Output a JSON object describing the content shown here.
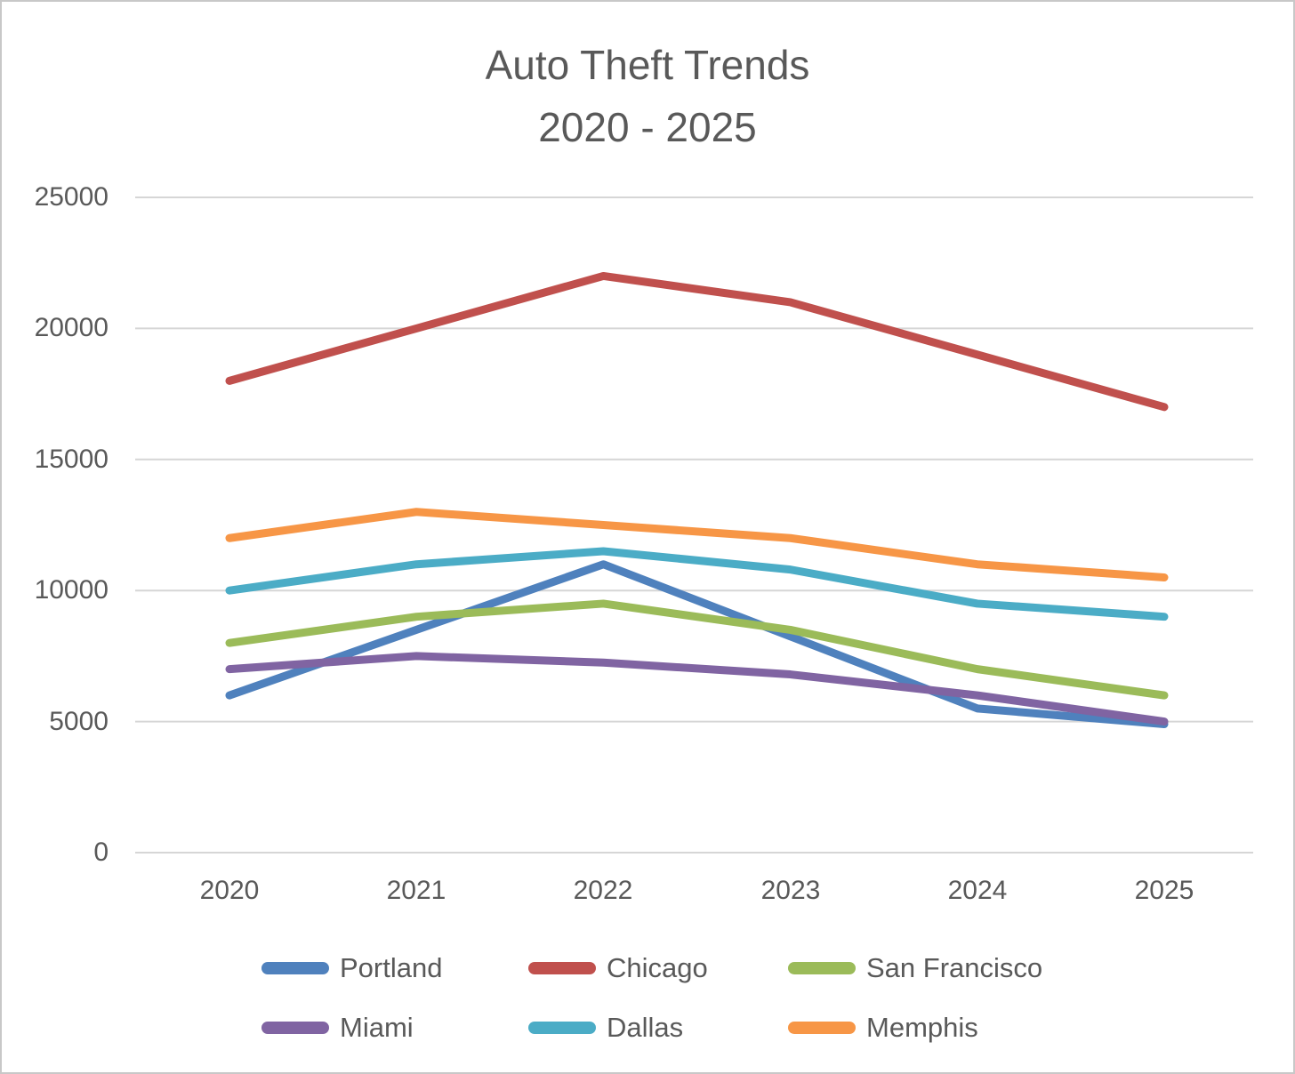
{
  "title": {
    "line1": "Auto Theft Trends",
    "line2": "2020 - 2025"
  },
  "chart_data": {
    "type": "line",
    "categories": [
      "2020",
      "2021",
      "2022",
      "2023",
      "2024",
      "2025"
    ],
    "series": [
      {
        "name": "Portland",
        "color": "#4F81BD",
        "values": [
          6000,
          8500,
          11000,
          8250,
          5500,
          4900
        ]
      },
      {
        "name": "Chicago",
        "color": "#C0504D",
        "values": [
          18000,
          20000,
          22000,
          21000,
          19000,
          17000
        ]
      },
      {
        "name": "San Francisco",
        "color": "#9BBB59",
        "values": [
          8000,
          9000,
          9500,
          8500,
          7000,
          6000
        ]
      },
      {
        "name": "Miami",
        "color": "#8064A2",
        "values": [
          7000,
          7500,
          7250,
          6800,
          6000,
          5000
        ]
      },
      {
        "name": "Dallas",
        "color": "#4BACC6",
        "values": [
          10000,
          11000,
          11500,
          10800,
          9500,
          9000
        ]
      },
      {
        "name": "Memphis",
        "color": "#F79646",
        "values": [
          12000,
          13000,
          12500,
          12000,
          11000,
          10500
        ]
      }
    ],
    "title": "Auto Theft Trends 2020 - 2025",
    "xlabel": "",
    "ylabel": "",
    "ylim": [
      0,
      25000
    ],
    "ytick_step": 5000,
    "yticks": [
      "25000",
      "20000",
      "15000",
      "10000",
      "5000",
      "0"
    ],
    "grid": "horizontal",
    "gridline_color": "#D6D6D6",
    "text_color": "#595959",
    "legend_position": "bottom"
  }
}
